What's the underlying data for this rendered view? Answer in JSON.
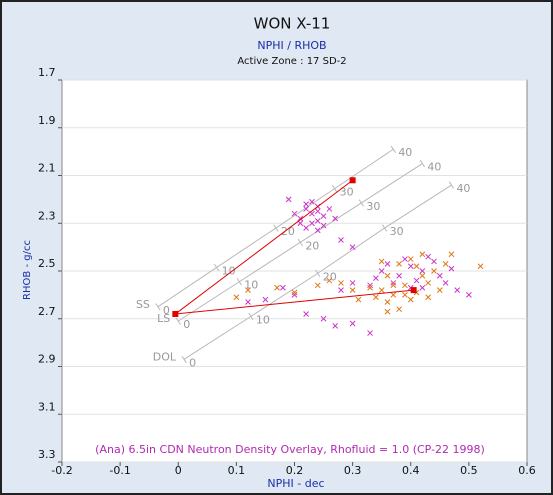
{
  "chart_data": {
    "type": "scatter",
    "title": "WON X-11",
    "subtitle": "NPHI / RHOB",
    "zone": "Active Zone : 17 SD-2",
    "x_label": "NPHI - dec",
    "y_label": "RHOB - g/cc",
    "annotation": "(Ana) 6.5in CDN Neutron Density Overlay, Rhofluid = 1.0 (CP-22 1998)",
    "xlim": [
      -0.2,
      0.6
    ],
    "xticks": [
      -0.2,
      -0.1,
      0,
      0.1,
      0.2,
      0.3,
      0.4,
      0.5,
      0.6
    ],
    "ylim": [
      1.7,
      3.3
    ],
    "yticks": [
      1.7,
      1.9,
      2.1,
      2.3,
      2.5,
      2.7,
      2.9,
      3.1,
      3.3
    ],
    "y_inverted": true,
    "grid": true,
    "lithology_lines": [
      {
        "name": "SS",
        "porosity": [
          0,
          10,
          20,
          30,
          40
        ],
        "x": [
          -0.035,
          0.066,
          0.168,
          0.269,
          0.37
        ],
        "y": [
          2.65,
          2.485,
          2.32,
          2.155,
          1.99
        ]
      },
      {
        "name": "LS",
        "porosity": [
          0,
          10,
          20,
          30,
          40
        ],
        "x": [
          0,
          0.105,
          0.21,
          0.315,
          0.42
        ],
        "y": [
          2.71,
          2.545,
          2.38,
          2.215,
          2.05
        ]
      },
      {
        "name": "DOL",
        "porosity": [
          0,
          10,
          20,
          30,
          40
        ],
        "x": [
          0.01,
          0.125,
          0.24,
          0.355,
          0.47
        ],
        "y": [
          2.87,
          2.69,
          2.51,
          2.32,
          2.14
        ]
      }
    ],
    "lithology_color": "#b8b8b8",
    "red_lines": {
      "color": "#e00000",
      "x": [
        0.3,
        -0.005,
        0.405
      ],
      "y": [
        2.12,
        2.68,
        2.58
      ]
    },
    "series": [
      {
        "color": "#cc33cc",
        "x": [
          0.22,
          0.23,
          0.24,
          0.21,
          0.25,
          0.23,
          0.22,
          0.24,
          0.26,
          0.2,
          0.23,
          0.25,
          0.22,
          0.24,
          0.21,
          0.27,
          0.24,
          0.28,
          0.3,
          0.19,
          0.35,
          0.38,
          0.4,
          0.42,
          0.44,
          0.37,
          0.41,
          0.45,
          0.39,
          0.43,
          0.46,
          0.48,
          0.33,
          0.36,
          0.4,
          0.34,
          0.47,
          0.42,
          0.3,
          0.28,
          0.15,
          0.12,
          0.2,
          0.25,
          0.27,
          0.3,
          0.33,
          0.22,
          0.5,
          0.18
        ],
        "y": [
          2.24,
          2.26,
          2.25,
          2.28,
          2.27,
          2.3,
          2.22,
          2.29,
          2.24,
          2.26,
          2.21,
          2.31,
          2.32,
          2.23,
          2.3,
          2.28,
          2.33,
          2.37,
          2.4,
          2.2,
          2.5,
          2.52,
          2.48,
          2.5,
          2.46,
          2.55,
          2.54,
          2.52,
          2.45,
          2.44,
          2.55,
          2.58,
          2.56,
          2.47,
          2.57,
          2.53,
          2.49,
          2.57,
          2.55,
          2.58,
          2.62,
          2.63,
          2.6,
          2.7,
          2.73,
          2.72,
          2.76,
          2.68,
          2.6,
          2.57
        ]
      },
      {
        "color": "#dd7711",
        "x": [
          0.35,
          0.37,
          0.39,
          0.41,
          0.43,
          0.36,
          0.38,
          0.34,
          0.4,
          0.42,
          0.44,
          0.38,
          0.4,
          0.36,
          0.33,
          0.45,
          0.37,
          0.39,
          0.41,
          0.43,
          0.46,
          0.35,
          0.3,
          0.28,
          0.26,
          0.52,
          0.47,
          0.42,
          0.1,
          0.12,
          0.17,
          0.2,
          0.24,
          0.36,
          0.31
        ],
        "y": [
          2.58,
          2.6,
          2.56,
          2.59,
          2.55,
          2.63,
          2.66,
          2.61,
          2.62,
          2.52,
          2.5,
          2.47,
          2.45,
          2.52,
          2.57,
          2.58,
          2.56,
          2.6,
          2.48,
          2.61,
          2.47,
          2.46,
          2.58,
          2.55,
          2.54,
          2.48,
          2.43,
          2.43,
          2.61,
          2.58,
          2.57,
          2.59,
          2.56,
          2.67,
          2.62
        ]
      }
    ]
  }
}
